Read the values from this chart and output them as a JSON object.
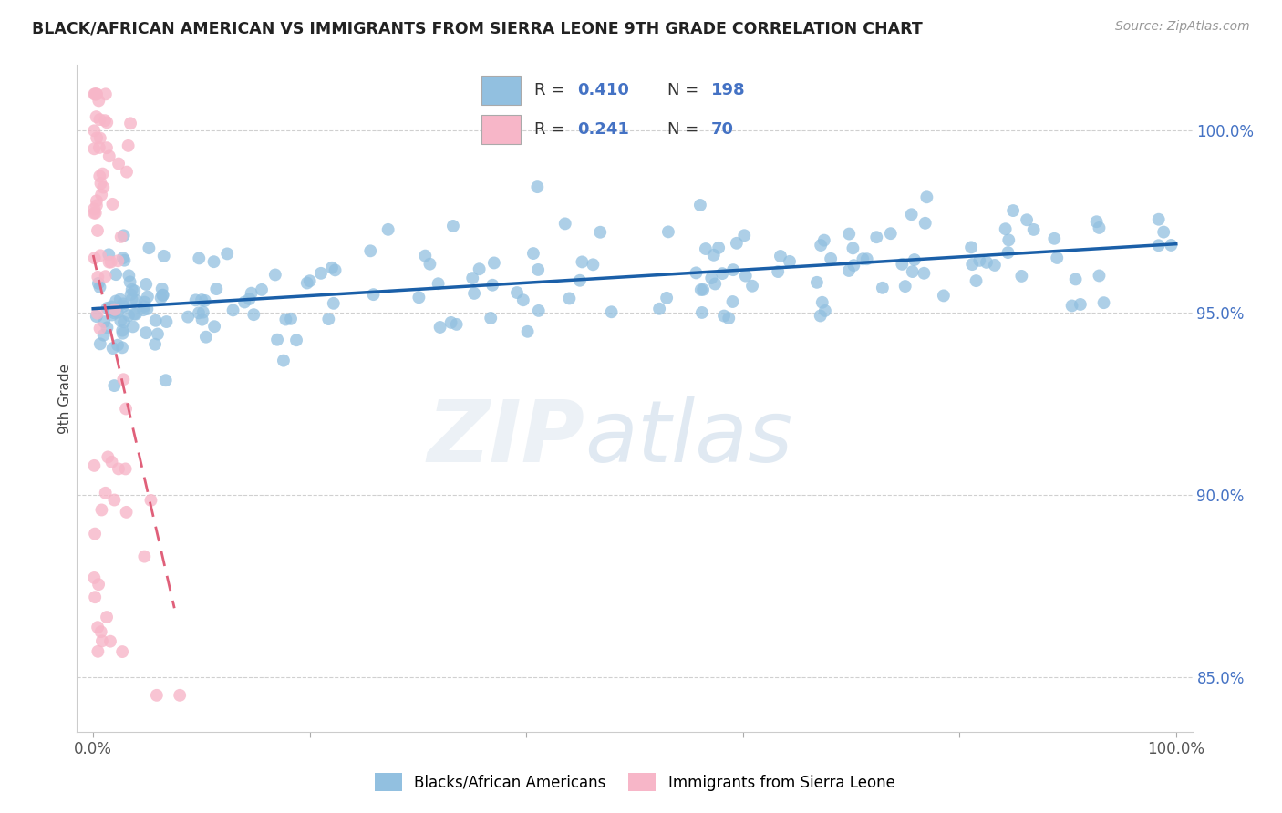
{
  "title": "BLACK/AFRICAN AMERICAN VS IMMIGRANTS FROM SIERRA LEONE 9TH GRADE CORRELATION CHART",
  "source": "Source: ZipAtlas.com",
  "ylabel": "9th Grade",
  "xlim": [
    -1.5,
    101.5
  ],
  "ylim": [
    83.5,
    101.8
  ],
  "yticks": [
    85.0,
    90.0,
    95.0,
    100.0
  ],
  "xtick_positions": [
    0,
    20,
    40,
    60,
    80,
    100
  ],
  "xtick_labels": [
    "0.0%",
    "",
    "",
    "",
    "",
    "100.0%"
  ],
  "ytick_labels": [
    "85.0%",
    "90.0%",
    "95.0%",
    "100.0%"
  ],
  "blue_R": "0.410",
  "blue_N": "198",
  "pink_R": "0.241",
  "pink_N": "70",
  "blue_color": "#92c0e0",
  "pink_color": "#f7b6c8",
  "blue_line_color": "#1a5fa8",
  "pink_line_color": "#e0607a",
  "axis_color": "#4472c4",
  "legend_label_blue": "Blacks/African Americans",
  "legend_label_pink": "Immigrants from Sierra Leone",
  "watermark_zip": "ZIP",
  "watermark_atlas": "atlas"
}
